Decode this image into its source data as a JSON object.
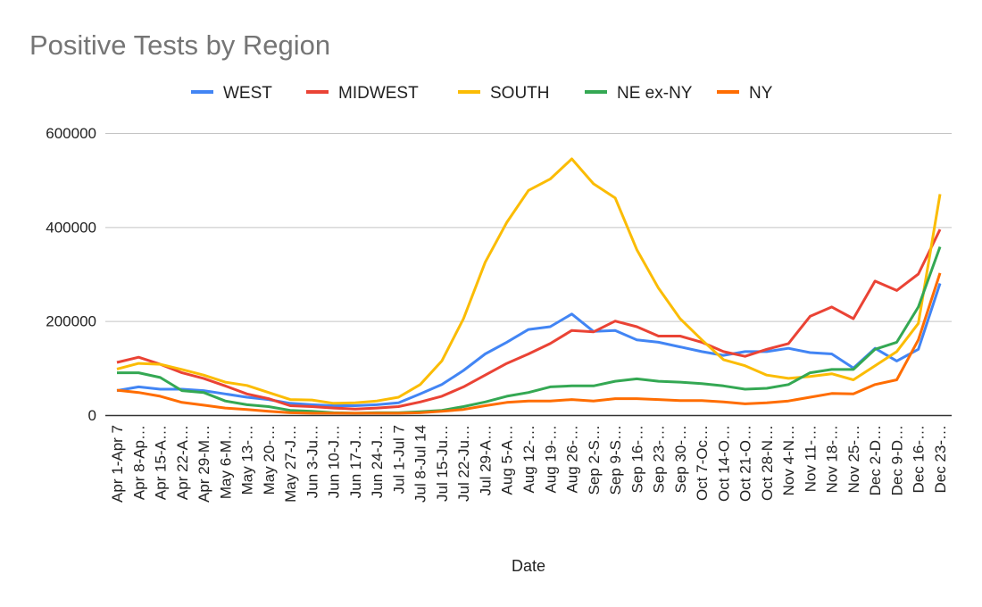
{
  "chart_data": {
    "type": "line",
    "title": "Positive Tests by Region",
    "xlabel": "Date",
    "ylabel": "",
    "ylim": [
      0,
      600000
    ],
    "yticks": [
      0,
      200000,
      400000,
      600000
    ],
    "grid": true,
    "legend_position": "top",
    "categories": [
      "Apr 1-Apr 7",
      "Apr 8-Ap…",
      "Apr 15-A…",
      "Apr 22-A…",
      "Apr 29-M…",
      "May 6-M…",
      "May 13-…",
      "May 20-…",
      "May 27-J…",
      "Jun 3-Ju…",
      "Jun 10-J…",
      "Jun 17-J…",
      "Jun 24-J…",
      "Jul 1-Jul 7",
      "Jul 8-Jul 14",
      "Jul 15-Ju…",
      "Jul 22-Ju…",
      "Jul 29-A…",
      "Aug 5-A…",
      "Aug 12-…",
      "Aug 19-…",
      "Aug 26-…",
      "Sep 2-S…",
      "Sep 9-S…",
      "Sep 16-…",
      "Sep 23-…",
      "Sep 30-…",
      "Oct 7-Oc…",
      "Oct 14-O…",
      "Oct 21-O…",
      "Oct 28-N…",
      "Nov 4-N…",
      "Nov 11-…",
      "Nov 18-…",
      "Nov 25-…",
      "Dec 2-D…",
      "Dec 9-D…",
      "Dec 16-…",
      "Dec 23-…"
    ],
    "series": [
      {
        "name": "WEST",
        "color": "#4285F4",
        "values": [
          52000,
          60000,
          55000,
          55000,
          52000,
          45000,
          38000,
          33000,
          25000,
          22000,
          20000,
          20000,
          22000,
          26000,
          45000,
          65000,
          95000,
          130000,
          155000,
          182000,
          188000,
          215000,
          178000,
          180000,
          160000,
          155000,
          145000,
          135000,
          127000,
          135000,
          135000,
          142000,
          133000,
          130000,
          100000,
          142000,
          115000,
          140000,
          280000
        ]
      },
      {
        "name": "MIDWEST",
        "color": "#EA4335",
        "values": [
          112000,
          123000,
          108000,
          90000,
          78000,
          62000,
          45000,
          35000,
          20000,
          18000,
          15000,
          13000,
          15000,
          18000,
          28000,
          40000,
          60000,
          85000,
          110000,
          130000,
          152000,
          180000,
          177000,
          200000,
          188000,
          168000,
          168000,
          155000,
          135000,
          125000,
          140000,
          152000,
          210000,
          230000,
          205000,
          285000,
          265000,
          300000,
          395000
        ]
      },
      {
        "name": "SOUTH",
        "color": "#FBBC04",
        "values": [
          98000,
          110000,
          108000,
          97000,
          85000,
          70000,
          63000,
          48000,
          33000,
          32000,
          25000,
          26000,
          30000,
          38000,
          65000,
          115000,
          205000,
          325000,
          410000,
          478000,
          502000,
          545000,
          492000,
          462000,
          352000,
          270000,
          205000,
          160000,
          118000,
          105000,
          85000,
          78000,
          82000,
          88000,
          75000,
          105000,
          135000,
          195000,
          470000
        ]
      },
      {
        "name": "NE ex-NY",
        "color": "#34A853",
        "values": [
          90000,
          90000,
          80000,
          52000,
          48000,
          30000,
          22000,
          18000,
          10000,
          8000,
          5000,
          4000,
          5000,
          5000,
          7000,
          10000,
          18000,
          28000,
          40000,
          48000,
          60000,
          62000,
          62000,
          72000,
          77000,
          72000,
          70000,
          67000,
          62000,
          55000,
          57000,
          65000,
          90000,
          97000,
          97000,
          140000,
          155000,
          230000,
          358000
        ]
      },
      {
        "name": "NY",
        "color": "#FF6D01",
        "values": [
          53000,
          48000,
          40000,
          27000,
          21000,
          15000,
          12000,
          8000,
          5000,
          4000,
          4000,
          4000,
          4000,
          4000,
          5000,
          8000,
          12000,
          20000,
          27000,
          30000,
          30000,
          33000,
          30000,
          35000,
          35000,
          33000,
          31000,
          31000,
          28000,
          24000,
          26000,
          30000,
          38000,
          46000,
          45000,
          65000,
          75000,
          160000,
          302000
        ]
      }
    ]
  }
}
